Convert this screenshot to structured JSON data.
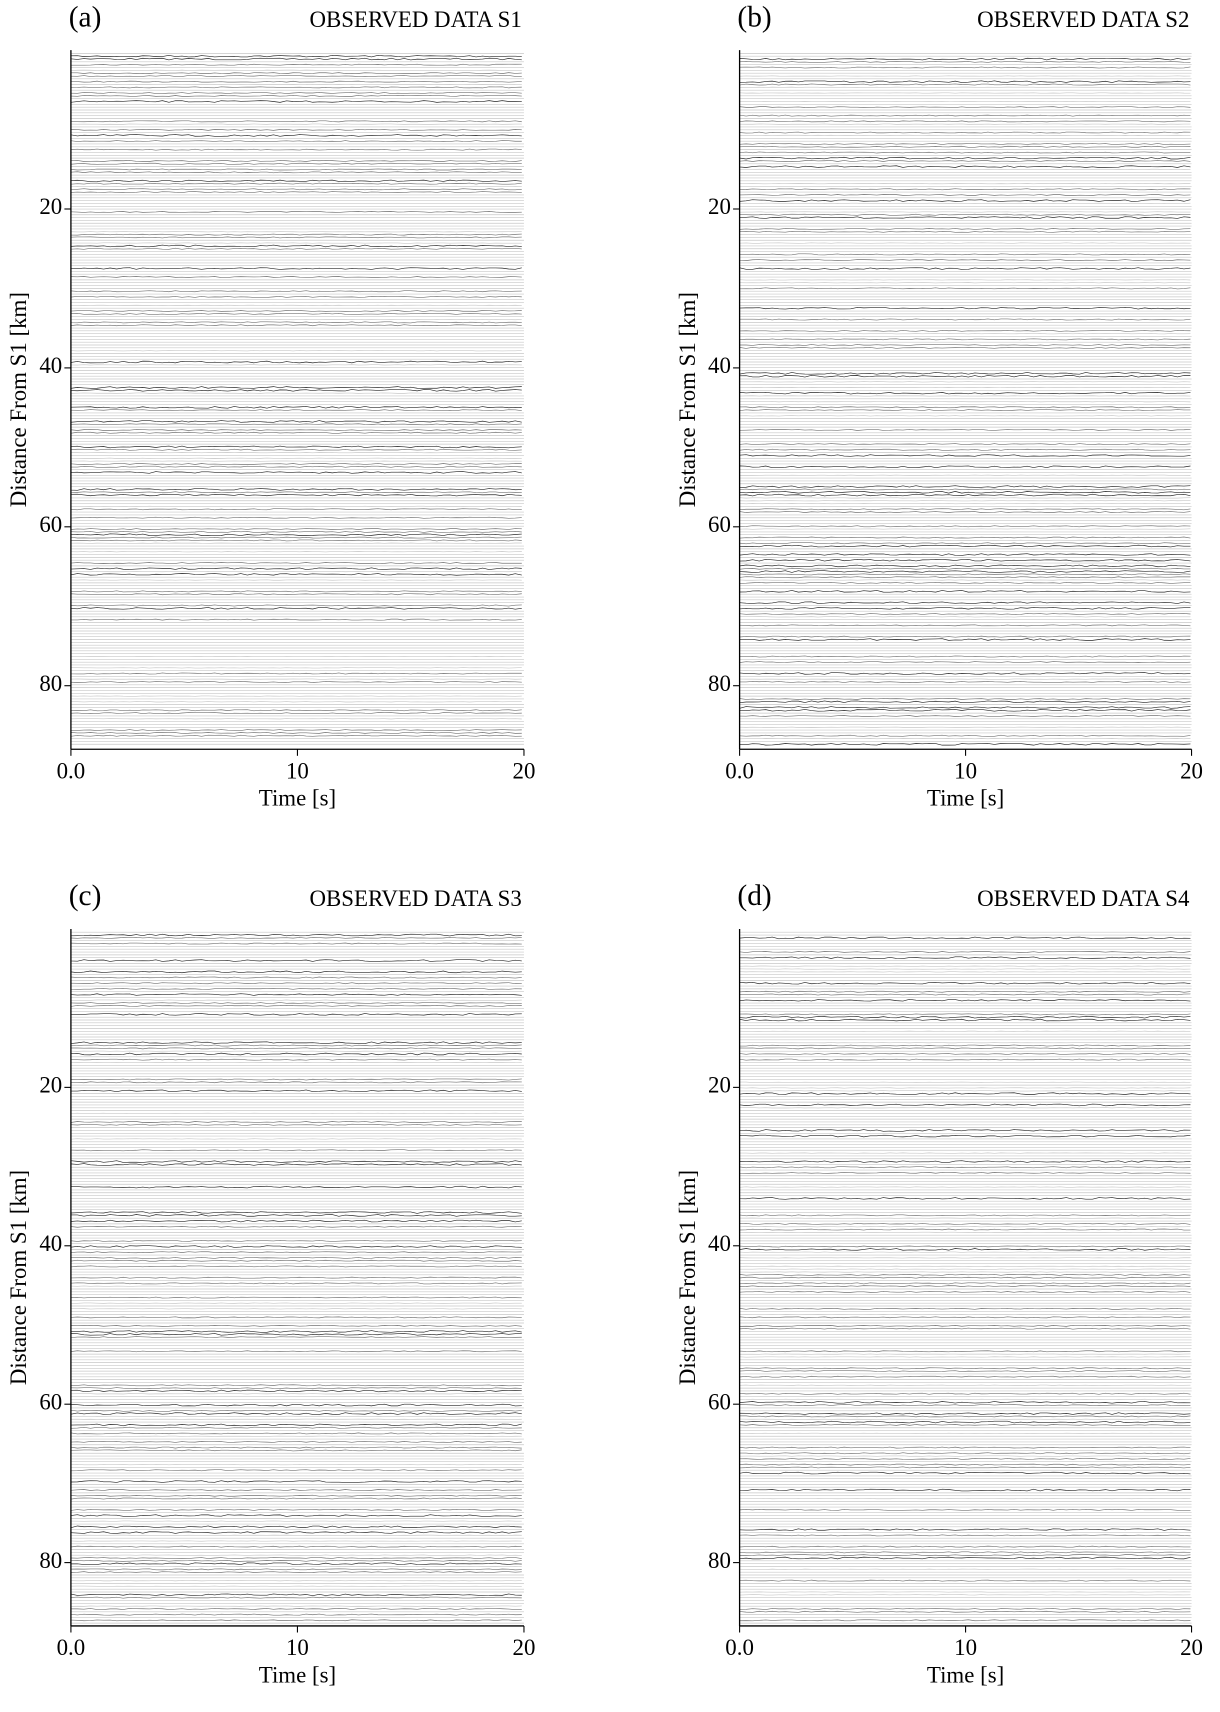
{
  "chart_data": [
    {
      "type": "wiggle",
      "panel_label": "(a)",
      "title": "OBSERVED DATA S1",
      "x_label": "Time [s]",
      "y_label": "Distance From S1 [km]",
      "xlim": [
        0,
        20
      ],
      "xticks": [
        {
          "value": 0,
          "label": "0.0"
        },
        10,
        20
      ],
      "ylim": [
        0,
        88
      ],
      "yticks": [
        20,
        40,
        60,
        80
      ],
      "y_inverted": true,
      "color": "#000000"
    },
    {
      "type": "wiggle",
      "panel_label": "(b)",
      "title": "OBSERVED DATA S2",
      "x_label": "Time [s]",
      "y_label": "Distance From S1 [km]",
      "xlim": [
        0,
        20
      ],
      "xticks": [
        {
          "value": 0,
          "label": "0.0"
        },
        10,
        20
      ],
      "ylim": [
        0,
        88
      ],
      "yticks": [
        20,
        40,
        60,
        80
      ],
      "y_inverted": true,
      "color": "#000000"
    },
    {
      "type": "wiggle",
      "panel_label": "(c)",
      "title": "OBSERVED DATA S3",
      "x_label": "Time [s]",
      "y_label": "Distance From S1 [km]",
      "xlim": [
        0,
        20
      ],
      "xticks": [
        {
          "value": 0,
          "label": "0.0"
        },
        10,
        20
      ],
      "ylim": [
        0,
        88
      ],
      "yticks": [
        20,
        40,
        60,
        80
      ],
      "y_inverted": true,
      "color": "#000000"
    },
    {
      "type": "wiggle",
      "panel_label": "(d)",
      "title": "OBSERVED DATA S4",
      "x_label": "Time [s]",
      "y_label": "Distance From S1 [km]",
      "xlim": [
        0,
        20
      ],
      "xticks": [
        {
          "value": 0,
          "label": "0.0"
        },
        10,
        20
      ],
      "ylim": [
        0,
        88
      ],
      "yticks": [
        20,
        40,
        60,
        80
      ],
      "y_inverted": true,
      "color": "#000000"
    }
  ]
}
